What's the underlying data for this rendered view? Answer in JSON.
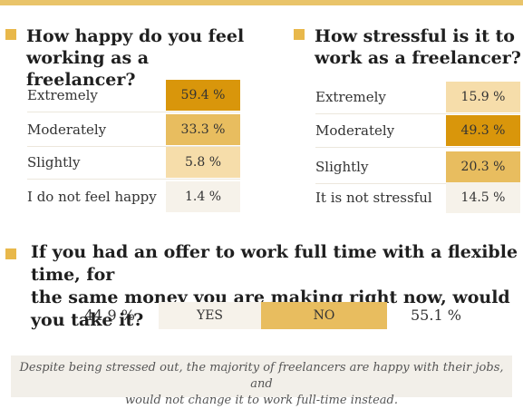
{
  "colors": {
    "accent": "#e8b84b",
    "topbar": "#e9c46a",
    "scale": [
      "#d9960b",
      "#e8bd5f",
      "#f6ddaa",
      "#f6f2ea"
    ],
    "note_bg": "#f2efe9"
  },
  "chart_data": [
    {
      "type": "table",
      "title": "How happy do you feel working as a freelancer?",
      "title_lines": [
        "How happy do you feel",
        "working as a freelancer?"
      ],
      "categories": [
        "Extremely",
        "Moderately",
        "Slightly",
        "I do not feel happy"
      ],
      "values": [
        59.4,
        33.3,
        5.8,
        1.4
      ],
      "value_labels": [
        "59.4 %",
        "33.3 %",
        "5.8 %",
        "1.4 %"
      ],
      "shade_levels": [
        0,
        1,
        2,
        3
      ]
    },
    {
      "type": "table",
      "title": "How stressful is it to work as a freelancer?",
      "title_lines": [
        "How stressful is it to",
        "work as a freelancer?"
      ],
      "categories": [
        "Extremely",
        "Moderately",
        "Slightly",
        "It is not stressful"
      ],
      "values": [
        15.9,
        49.3,
        20.3,
        14.5
      ],
      "value_labels": [
        "15.9 %",
        "49.3 %",
        "20.3 %",
        "14.5 %"
      ],
      "shade_levels": [
        2,
        0,
        1,
        3
      ]
    },
    {
      "type": "bar",
      "title": "If you had an offer to work full time with a flexible time, for the same money you are making right now, would you take it?",
      "title_lines": [
        "If you had an offer to work full time with a flexible time, for",
        "the same money you are making right now, would you take it?"
      ],
      "categories": [
        "YES",
        "NO"
      ],
      "values": [
        44.9,
        55.1
      ],
      "value_labels": [
        "44.9 %",
        "55.1 %"
      ]
    }
  ],
  "note": {
    "lines": [
      "Despite being stressed out, the majority of freelancers are happy with their jobs, and",
      "would not change it to work full-time instead."
    ]
  }
}
